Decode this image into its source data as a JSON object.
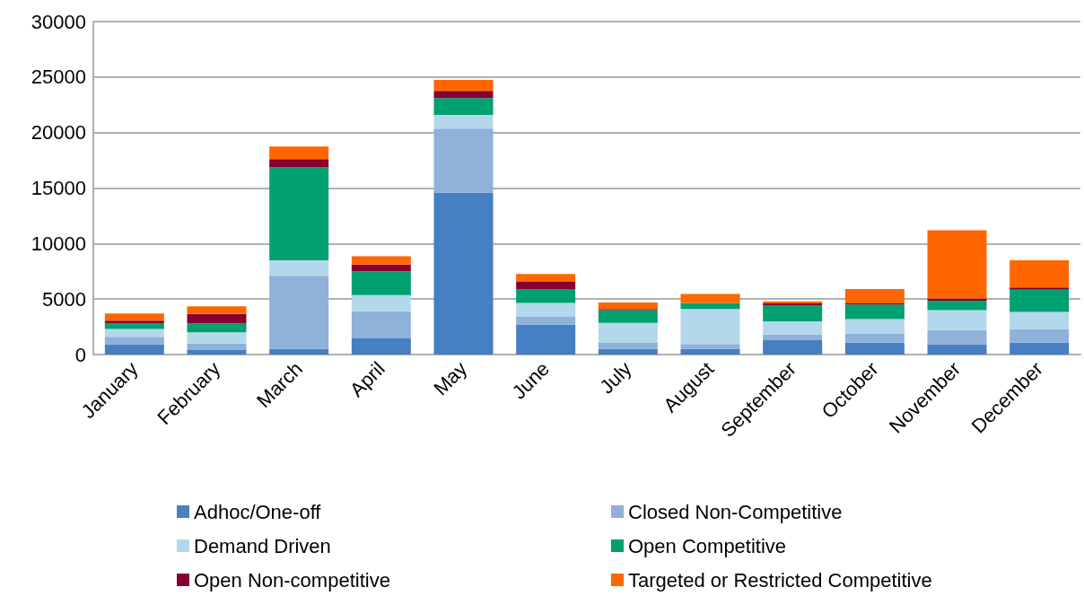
{
  "chart_data": {
    "type": "bar",
    "stacked": true,
    "categories": [
      "January",
      "February",
      "March",
      "April",
      "May",
      "June",
      "July",
      "August",
      "September",
      "October",
      "November",
      "December"
    ],
    "series": [
      {
        "name": "Adhoc/One-off",
        "color": "#467fc2",
        "values": [
          900,
          400,
          500,
          1450,
          14600,
          2700,
          500,
          500,
          1300,
          1100,
          900,
          1100
        ]
      },
      {
        "name": "Closed Non-Competitive",
        "color": "#8fb1da",
        "values": [
          700,
          600,
          6600,
          2450,
          5750,
          700,
          550,
          450,
          500,
          750,
          1300,
          1200
        ]
      },
      {
        "name": "Demand Driven",
        "color": "#b4d8eb",
        "values": [
          700,
          1000,
          1400,
          1450,
          1250,
          1250,
          1800,
          3150,
          1200,
          1350,
          1800,
          1550
        ]
      },
      {
        "name": "Open Competitive",
        "color": "#00a070",
        "values": [
          500,
          800,
          8350,
          2150,
          1500,
          1250,
          1150,
          550,
          1450,
          1300,
          850,
          2000
        ]
      },
      {
        "name": "Open Non-competitive",
        "color": "#870030",
        "values": [
          250,
          850,
          750,
          600,
          650,
          650,
          100,
          0,
          150,
          100,
          200,
          200
        ]
      },
      {
        "name": "Targeted or Restricted Competitive",
        "color": "#ff6600",
        "values": [
          650,
          700,
          1150,
          750,
          1000,
          700,
          600,
          800,
          200,
          1300,
          6150,
          2450
        ]
      }
    ],
    "ylim": [
      0,
      30000
    ],
    "yticks": [
      0,
      5000,
      10000,
      15000,
      20000,
      25000,
      30000
    ],
    "grid": "y",
    "legend": "bottom"
  }
}
